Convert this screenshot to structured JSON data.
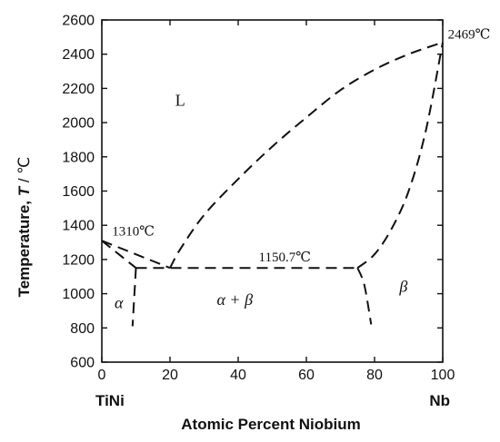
{
  "chart_data": {
    "type": "line",
    "title": "",
    "xlabel": "Atomic Percent Niobium",
    "ylabel_main": "Temperature, ",
    "ylabel_var": "T",
    "ylabel_unit": " / ℃",
    "xlim": [
      0,
      100
    ],
    "ylim": [
      600,
      2600
    ],
    "grid": false,
    "legend": "none",
    "x_ticks": [
      0,
      20,
      40,
      60,
      80,
      100
    ],
    "y_ticks": [
      600,
      800,
      1000,
      1200,
      1400,
      1600,
      1800,
      2000,
      2200,
      2400,
      2600
    ],
    "x_endpoints": [
      {
        "x": 0,
        "label": "TiNi"
      },
      {
        "x": 100,
        "label": "Nb"
      }
    ],
    "series": [
      {
        "id": "liquidus-left",
        "points": [
          [
            0,
            1310
          ],
          [
            20,
            1150.7
          ]
        ]
      },
      {
        "id": "liquidus-right",
        "points": [
          [
            20,
            1150.7
          ],
          [
            23,
            1260
          ],
          [
            30,
            1460
          ],
          [
            40,
            1670
          ],
          [
            50,
            1860
          ],
          [
            60,
            2030
          ],
          [
            70,
            2190
          ],
          [
            80,
            2310
          ],
          [
            90,
            2400
          ],
          [
            100,
            2469
          ]
        ]
      },
      {
        "id": "solidus-left",
        "points": [
          [
            0,
            1310
          ],
          [
            10,
            1150.7
          ]
        ]
      },
      {
        "id": "eutectic-line",
        "points": [
          [
            10,
            1150.7
          ],
          [
            75,
            1150.7
          ]
        ]
      },
      {
        "id": "solidus-right",
        "points": [
          [
            75,
            1150.7
          ],
          [
            80,
            1230
          ],
          [
            85,
            1380
          ],
          [
            90,
            1600
          ],
          [
            95,
            1950
          ],
          [
            100,
            2469
          ]
        ]
      },
      {
        "id": "solvus-alpha",
        "points": [
          [
            10,
            1150.7
          ],
          [
            9.8,
            1080
          ],
          [
            9,
            810
          ]
        ]
      },
      {
        "id": "solvus-beta",
        "points": [
          [
            75,
            1150.7
          ],
          [
            77,
            1050
          ],
          [
            79,
            820
          ]
        ]
      }
    ],
    "annotations": [
      {
        "id": "tm-tini",
        "text": "1310℃",
        "x": 3,
        "y": 1340
      },
      {
        "id": "tm-nb",
        "text": "2469℃",
        "x": 101.5,
        "y": 2490
      },
      {
        "id": "eutectic-temp",
        "text": "1150.7℃",
        "x": 46,
        "y": 1190
      }
    ],
    "regions": [
      {
        "id": "liquid",
        "text": "L",
        "x": 23,
        "y": 2100,
        "italic": false
      },
      {
        "id": "alpha",
        "text": "α",
        "x": 5,
        "y": 915,
        "italic": true
      },
      {
        "id": "alpha-beta",
        "text": "α + β",
        "x": 39,
        "y": 935,
        "italic": true
      },
      {
        "id": "beta",
        "text": "β",
        "x": 88.5,
        "y": 1010,
        "italic": true
      }
    ]
  }
}
